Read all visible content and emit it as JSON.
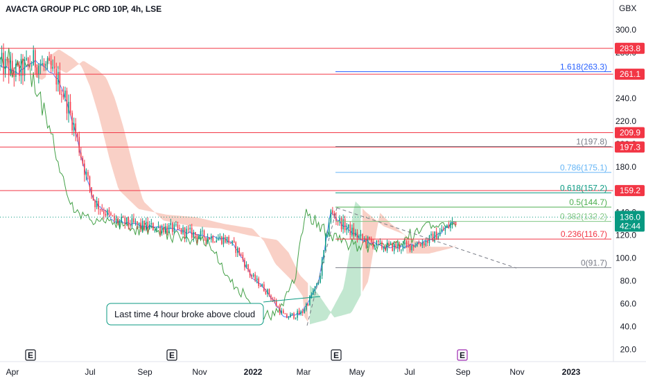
{
  "chart_data": {
    "type": "candlestick",
    "title": "AVACTA GROUP PLC ORD 10P, 4h, LSE",
    "currency": "GBX",
    "ylim": [
      10,
      318
    ],
    "y_ticks": [
      "300.0",
      "280.0",
      "260.0",
      "240.0",
      "220.0",
      "200.0",
      "180.0",
      "160.0",
      "140.0",
      "120.0",
      "100.0",
      "80.0",
      "60.0",
      "40.0",
      "20.0"
    ],
    "x_labels": [
      {
        "label": "Apr",
        "bold": false
      },
      {
        "label": "Jul",
        "bold": false
      },
      {
        "label": "Sep",
        "bold": false
      },
      {
        "label": "Nov",
        "bold": false
      },
      {
        "label": "2022",
        "bold": true
      },
      {
        "label": "Mar",
        "bold": false
      },
      {
        "label": "May",
        "bold": false
      },
      {
        "label": "Jul",
        "bold": false
      },
      {
        "label": "Sep",
        "bold": false
      },
      {
        "label": "Nov",
        "bold": false
      },
      {
        "label": "2023",
        "bold": true
      }
    ],
    "price_path": [
      {
        "t": 0,
        "p": 270
      },
      {
        "t": 0.03,
        "p": 262
      },
      {
        "t": 0.06,
        "p": 273
      },
      {
        "t": 0.085,
        "p": 265
      },
      {
        "t": 0.1,
        "p": 258
      },
      {
        "t": 0.115,
        "p": 240
      },
      {
        "t": 0.13,
        "p": 215
      },
      {
        "t": 0.15,
        "p": 175
      },
      {
        "t": 0.165,
        "p": 150
      },
      {
        "t": 0.2,
        "p": 133
      },
      {
        "t": 0.25,
        "p": 128
      },
      {
        "t": 0.3,
        "p": 126
      },
      {
        "t": 0.35,
        "p": 120
      },
      {
        "t": 0.4,
        "p": 116
      },
      {
        "t": 0.42,
        "p": 105
      },
      {
        "t": 0.44,
        "p": 85
      },
      {
        "t": 0.47,
        "p": 70
      },
      {
        "t": 0.5,
        "p": 48
      },
      {
        "t": 0.53,
        "p": 52
      },
      {
        "t": 0.56,
        "p": 80
      },
      {
        "t": 0.58,
        "p": 140
      },
      {
        "t": 0.6,
        "p": 130
      },
      {
        "t": 0.63,
        "p": 118
      },
      {
        "t": 0.67,
        "p": 110
      },
      {
        "t": 0.71,
        "p": 110
      },
      {
        "t": 0.75,
        "p": 115
      },
      {
        "t": 0.78,
        "p": 125
      },
      {
        "t": 0.8,
        "p": 133
      }
    ],
    "horizontal_levels": [
      283.8,
      261.1,
      209.9,
      197.3,
      159.2
    ],
    "price_tags": [
      {
        "label": "283.8",
        "value": 283.8
      },
      {
        "label": "261.1",
        "value": 261.1
      },
      {
        "label": "209.9",
        "value": 209.9
      },
      {
        "label": "197.3",
        "value": 197.3
      },
      {
        "label": "159.2",
        "value": 159.2
      }
    ],
    "current_price": {
      "label": "136.0",
      "countdown": "42:44",
      "value": 136.0
    },
    "fib_levels": [
      {
        "label": "1.618(263.3)",
        "value": 263.3,
        "color": "#2962ff"
      },
      {
        "label": "1(197.8)",
        "value": 197.8,
        "color": "#787b86"
      },
      {
        "label": "0.786(175.1)",
        "value": 175.1,
        "color": "#64b5f6"
      },
      {
        "label": "0.618(157.2)",
        "value": 157.2,
        "color": "#089981"
      },
      {
        "label": "0.5(144.7)",
        "value": 144.7,
        "color": "#4caf50"
      },
      {
        "label": "0.382(132.2)",
        "value": 132.2,
        "color": "#81c784"
      },
      {
        "label": "0.236(116.7)",
        "value": 116.7,
        "color": "#f23645"
      },
      {
        "label": "0(91.7)",
        "value": 91.7,
        "color": "#787b86"
      }
    ],
    "annotation": "Last time 4 hour broke above cloud",
    "earnings_markers": [
      "E",
      "E",
      "E",
      "E"
    ],
    "colors": {
      "level": "#f23645",
      "tag_bg": "#f23645",
      "current_tag": "#089981",
      "candle_up": "#089981",
      "candle_down": "#f23645",
      "lagging_line": "#43a047",
      "base_line": "#2962ff",
      "cloud_bear": "#f8c8bc",
      "cloud_bull": "#b7e3c8",
      "annotation_border": "#089981",
      "upcoming_earnings": "#9c27b0"
    }
  }
}
